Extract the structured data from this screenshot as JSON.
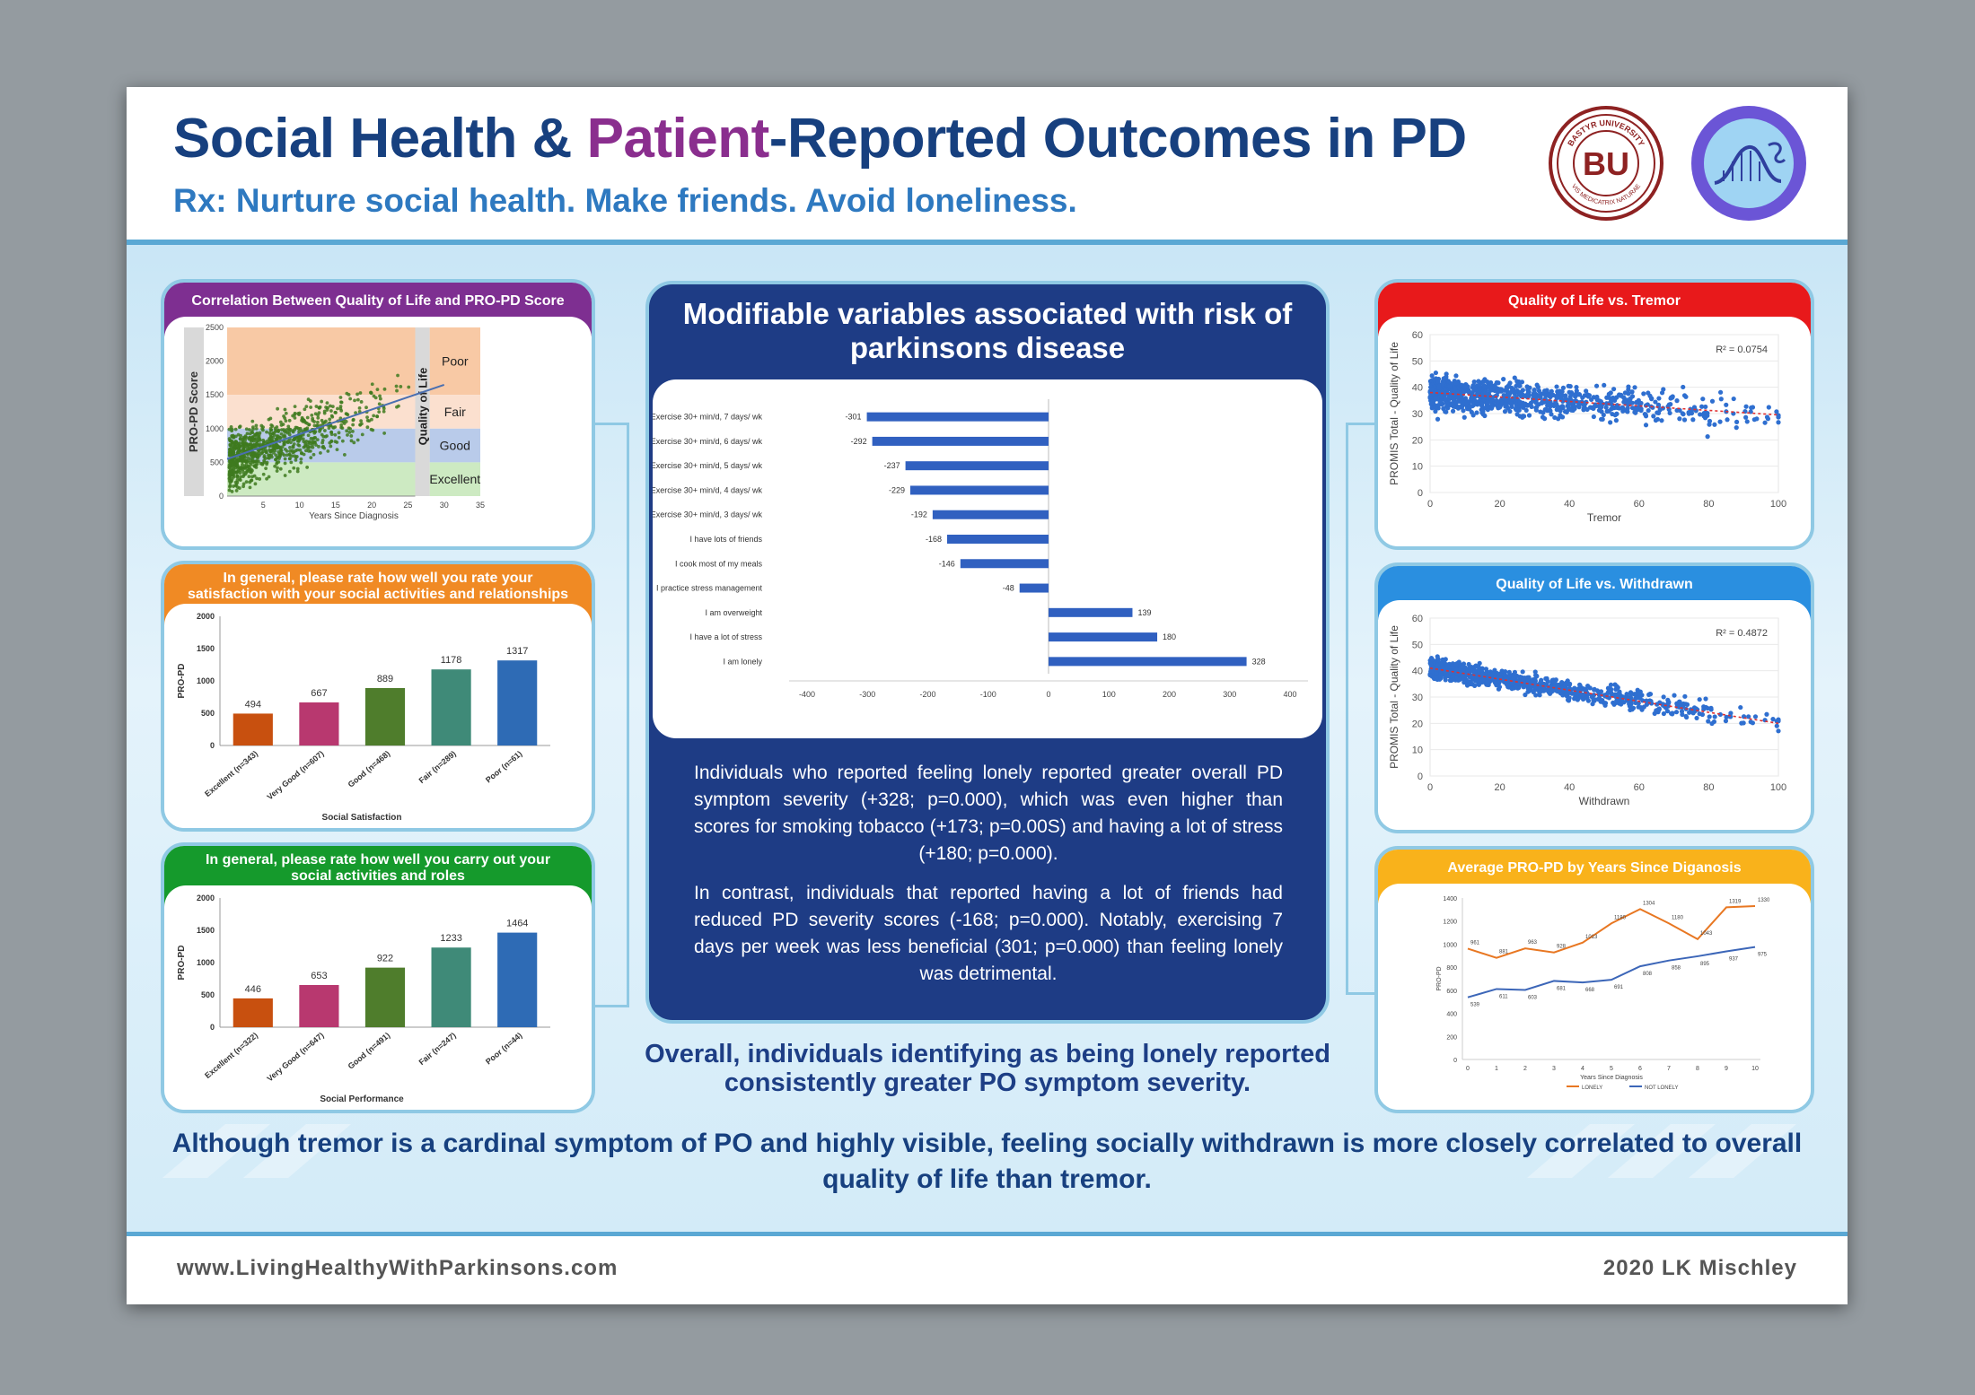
{
  "header": {
    "title_part1": "Social Health & ",
    "title_highlight": "Patient",
    "title_part2": "-Reported Outcomes in PD",
    "subtitle": "Rx: Nurture social health. Make friends. Avoid loneliness.",
    "logo1_text_top": "BASTYR UNIVERSITY",
    "logo1_text_bottom": "VIS MEDICATRIX NATURAE",
    "logo1_mark": "BU"
  },
  "footer": {
    "url": "www.LivingHealthyWithParkinsons.com",
    "credit": "2020 LK Mischley"
  },
  "colors": {
    "navy": "#17407f",
    "purple": "#8a2e8e",
    "blue": "#2e79c0",
    "panel_border": "#8fc9e4",
    "bar_blue": "#3060c0"
  },
  "center": {
    "title": "Modifiable variables associated with risk of parkinsons disease",
    "para1": "Individuals who reported feeling lonely reported greater overall PD symptom severity (+328; p=0.000), which was even higher than scores for smoking tobacco (+173; p=0.00S) and having a lot of stress (+180; p=0.000).",
    "para2": "In contrast, individuals that reported having a lot of friends had reduced PD severity scores (-168; p=0.000). Notably, exercising 7 days per week was less beneficial (301; p=0.000) than feeling lonely was detrimental.",
    "overall": "Overall, individuals identifying as being lonely reported consistently greater PO symptom severity."
  },
  "bottom_text": "Although tremor is a cardinal symptom of PO and highly visible, feeling socially withdrawn is more closely correlated to overall quality of life than tremor.",
  "chart_data": [
    {
      "id": "scatter_qol",
      "type": "scatter",
      "title": "Correlation Between Quality of Life and PRO-PD Score",
      "xlabel": "Years Since Diagnosis",
      "ylabel": "PRO-PD Score",
      "xlim": [
        0,
        35
      ],
      "ylim": [
        0,
        2500
      ],
      "xticks": [
        5,
        10,
        15,
        20,
        25,
        30,
        35
      ],
      "yticks": [
        0,
        500,
        1000,
        1500,
        2000,
        2500
      ],
      "band_axis_label": "Quality of Life",
      "bands": [
        {
          "label": "Poor",
          "from": 1500,
          "to": 2500,
          "color": "#f8c9a5"
        },
        {
          "label": "Fair",
          "from": 1000,
          "to": 1500,
          "color": "#fbe0cf"
        },
        {
          "label": "Good",
          "from": 500,
          "to": 1000,
          "color": "#b9cbea"
        },
        {
          "label": "Excellent",
          "from": 0,
          "to": 500,
          "color": "#cdeac2"
        }
      ],
      "trendline": [
        [
          0,
          550
        ],
        [
          30,
          1650
        ]
      ],
      "point_color": "#3e7a1e"
    },
    {
      "id": "bar_satisfaction",
      "type": "bar",
      "title": "In general, please rate how well you rate your satisfaction with your social activities and relationships",
      "xlabel": "Social Satisfaction",
      "ylabel": "PRO-PD",
      "ylim": [
        0,
        2000
      ],
      "yticks": [
        0,
        500,
        1000,
        1500,
        2000
      ],
      "categories": [
        "Excellent (n=343)",
        "Very Good (n=607)",
        "Good (n=468)",
        "Fair (n=289)",
        "Poor (n=61)"
      ],
      "values": [
        494,
        667,
        889,
        1178,
        1317
      ],
      "colors": [
        "#c8500f",
        "#b8386f",
        "#4f7d2c",
        "#3f8a78",
        "#2e6bb5"
      ]
    },
    {
      "id": "bar_performance",
      "type": "bar",
      "title": "In general, please rate how well you carry out your social activities and roles",
      "xlabel": "Social Performance",
      "ylabel": "PRO-PD",
      "ylim": [
        0,
        2000
      ],
      "yticks": [
        0,
        500,
        1000,
        1500,
        2000
      ],
      "categories": [
        "Excellent (n=322)",
        "Very Good (n=647)",
        "Good (n=491)",
        "Fair (n=247)",
        "Poor (n=44)"
      ],
      "values": [
        446,
        653,
        922,
        1233,
        1464
      ],
      "colors": [
        "#c8500f",
        "#b8386f",
        "#4f7d2c",
        "#3f8a78",
        "#2e6bb5"
      ]
    },
    {
      "id": "hbar_modifiable",
      "type": "bar",
      "orientation": "horizontal",
      "categories": [
        "Exercise 30+ min/d, 7 days/ wk",
        "Exercise 30+ min/d, 6 days/ wk",
        "Exercise 30+ min/d, 5 days/ wk",
        "Exercise 30+ min/d, 4 days/ wk",
        "Exercise 30+ min/d, 3 days/ wk",
        "I have lots of friends",
        "I cook most of my meals",
        "I practice stress management",
        "I am overweight",
        "I have a lot of stress",
        "I am lonely"
      ],
      "values": [
        -301,
        -292,
        -237,
        -229,
        -192,
        -168,
        -146,
        -48,
        139,
        180,
        328
      ],
      "xlim": [
        -400,
        400
      ],
      "xticks": [
        -400,
        -300,
        -200,
        -100,
        0,
        100,
        200,
        300,
        400
      ]
    },
    {
      "id": "scatter_tremor",
      "type": "scatter",
      "title": "Quality of Life vs. Tremor",
      "xlabel": "Tremor",
      "ylabel": "PROMIS Total - Quality of Life",
      "xlim": [
        0,
        100
      ],
      "ylim": [
        0,
        60
      ],
      "xticks": [
        0,
        20,
        40,
        60,
        80,
        100
      ],
      "yticks": [
        0,
        10,
        20,
        30,
        40,
        50,
        60
      ],
      "r2_label": "R² = 0.0754",
      "trendline": [
        [
          0,
          38
        ],
        [
          100,
          29.5
        ]
      ]
    },
    {
      "id": "scatter_withdrawn",
      "type": "scatter",
      "title": "Quality of Life vs. Withdrawn",
      "xlabel": "Withdrawn",
      "ylabel": "PROMIS Total - Quality of Life",
      "xlim": [
        0,
        100
      ],
      "ylim": [
        0,
        60
      ],
      "xticks": [
        0,
        20,
        40,
        60,
        80,
        100
      ],
      "yticks": [
        0,
        10,
        20,
        30,
        40,
        50,
        60
      ],
      "r2_label": "R² = 0.4872",
      "trendline": [
        [
          0,
          41
        ],
        [
          100,
          20
        ]
      ]
    },
    {
      "id": "line_years",
      "type": "line",
      "title": "Average PRO-PD by Years Since Diganosis",
      "xlabel": "Years Since Diagnosis",
      "ylabel": "PRO-PD",
      "x": [
        0,
        1,
        2,
        3,
        4,
        5,
        6,
        7,
        8,
        9,
        10
      ],
      "ylim": [
        0,
        1400
      ],
      "yticks": [
        0,
        200,
        400,
        600,
        800,
        1000,
        1200,
        1400
      ],
      "series": [
        {
          "name": "LONELY",
          "color": "#e87722",
          "values": [
            961,
            881,
            963,
            928,
            1013,
            1180,
            1304,
            1180,
            1043,
            1319,
            1330
          ]
        },
        {
          "name": "NOT LONELY",
          "color": "#3c66b8",
          "values": [
            539,
            611,
            603,
            681,
            668,
            691,
            808,
            858,
            895,
            937,
            975
          ]
        }
      ],
      "legend_position": "bottom"
    }
  ]
}
